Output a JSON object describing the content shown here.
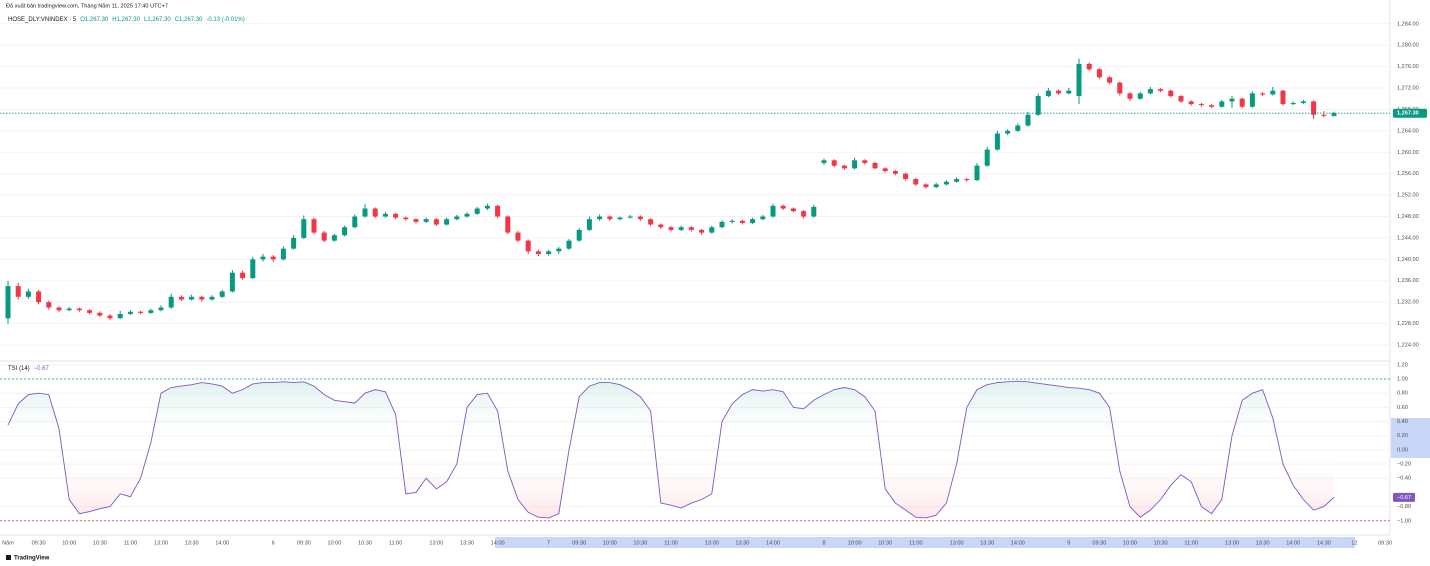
{
  "chart_data": {
    "type": "candlestick",
    "publisher": "Đã xuất bản tradingview.com, Tháng Năm 11, 2025 17:40 UTC+7",
    "symbol": "HOSE_DLY:VNINDEX · 5",
    "legend_values": [
      "O1,267.30",
      "H1,267.30",
      "L1,267.30",
      "C1,267.30",
      "-0.13 (-0.01%)"
    ],
    "watermark": "TradingView",
    "up_color": "#089981",
    "down_color": "#f23645",
    "grid": true,
    "categories": [
      "Năm",
      null,
      null,
      "09:30",
      null,
      null,
      "10:00",
      null,
      null,
      "10:30",
      null,
      null,
      "11:00",
      null,
      null,
      "13:00",
      null,
      null,
      "13:30",
      null,
      null,
      "14:00",
      null,
      null,
      null,
      null,
      "6",
      null,
      null,
      "09:30",
      null,
      null,
      "10:00",
      null,
      null,
      "10:30",
      null,
      null,
      "11:00",
      null,
      null,
      null,
      "13:00",
      null,
      null,
      "13:30",
      null,
      null,
      "14:00",
      null,
      null,
      null,
      null,
      "7",
      null,
      null,
      "09:30",
      null,
      null,
      "10:00",
      null,
      null,
      "10:30",
      null,
      null,
      "11:00",
      null,
      null,
      null,
      "13:00",
      null,
      null,
      "13:30",
      null,
      null,
      "14:00",
      null,
      null,
      null,
      null,
      "8",
      null,
      null,
      "10:00",
      null,
      null,
      "10:30",
      null,
      null,
      "11:00",
      null,
      null,
      null,
      "13:00",
      null,
      null,
      "13:30",
      null,
      null,
      "14:00",
      null,
      null,
      null,
      null,
      "9",
      null,
      null,
      "09:30",
      null,
      null,
      "10:00",
      null,
      null,
      "10:30",
      null,
      null,
      "11:00",
      null,
      null,
      null,
      "13:00",
      null,
      null,
      "13:30",
      null,
      null,
      "14:00",
      null,
      null,
      "14:30",
      null,
      null,
      "12",
      null,
      null,
      "09:30"
    ],
    "ohlc": [
      [
        1229,
        1236,
        1228,
        1235
      ],
      [
        1235,
        1235.6,
        1232.5,
        1233
      ],
      [
        1233,
        1234.5,
        1232.6,
        1234
      ],
      [
        1234,
        1234.3,
        1231.6,
        1232
      ],
      [
        1232,
        1232.3,
        1230.6,
        1231
      ],
      [
        1231,
        1231.2,
        1230.2,
        1230.5
      ],
      [
        1230.5,
        1231.1,
        1230.3,
        1230.8
      ],
      [
        1230.8,
        1231,
        1230.2,
        1230.5
      ],
      [
        1230.5,
        1230.7,
        1229.7,
        1230
      ],
      [
        1230,
        1230.3,
        1229.2,
        1229.5
      ],
      [
        1229.5,
        1229.8,
        1228.7,
        1229
      ],
      [
        1229,
        1230.4,
        1228.9,
        1229.8
      ],
      [
        1229.8,
        1230.5,
        1229.6,
        1230.2
      ],
      [
        1230.2,
        1230.4,
        1229.7,
        1230
      ],
      [
        1230,
        1230.8,
        1229.8,
        1230.5
      ],
      [
        1230.5,
        1231.4,
        1230.3,
        1231
      ],
      [
        1231,
        1233.6,
        1230.8,
        1233
      ],
      [
        1233,
        1233.3,
        1232.2,
        1232.5
      ],
      [
        1232.5,
        1233.4,
        1232.3,
        1233
      ],
      [
        1233,
        1233.2,
        1232.1,
        1232.5
      ],
      [
        1232.5,
        1233.3,
        1232.3,
        1233
      ],
      [
        1233,
        1234.3,
        1232.8,
        1234
      ],
      [
        1234,
        1238,
        1233.8,
        1237.5
      ],
      [
        1237.5,
        1237.9,
        1236.2,
        1236.5
      ],
      [
        1236.5,
        1240.5,
        1236.3,
        1240
      ],
      [
        1240,
        1241,
        1239.6,
        1240.5
      ],
      [
        1240.5,
        1240.8,
        1239.5,
        1240
      ],
      [
        1240,
        1242.4,
        1239.8,
        1242
      ],
      [
        1242,
        1244.5,
        1241.8,
        1244
      ],
      [
        1244,
        1248.2,
        1243.8,
        1247.5
      ],
      [
        1247.5,
        1247.8,
        1244.7,
        1245
      ],
      [
        1245,
        1245.3,
        1243.2,
        1243.5
      ],
      [
        1243.5,
        1244.8,
        1243.3,
        1244.5
      ],
      [
        1244.5,
        1246.3,
        1244.3,
        1246
      ],
      [
        1246,
        1248.4,
        1245.8,
        1248
      ],
      [
        1248,
        1250.3,
        1247.8,
        1249.5
      ],
      [
        1249.5,
        1249.7,
        1247.7,
        1248
      ],
      [
        1248,
        1248.9,
        1247.8,
        1248.5
      ],
      [
        1248.5,
        1248.7,
        1247.5,
        1247.8
      ],
      [
        1247.8,
        1248,
        1247.2,
        1247.5
      ],
      [
        1247.5,
        1247.7,
        1246.7,
        1247
      ],
      [
        1247,
        1247.8,
        1246.8,
        1247.5
      ],
      [
        1247.5,
        1247.7,
        1246.2,
        1246.5
      ],
      [
        1246.5,
        1247.8,
        1246.3,
        1247.5
      ],
      [
        1247.5,
        1248.3,
        1247.3,
        1248
      ],
      [
        1248,
        1248.8,
        1247.8,
        1248.5
      ],
      [
        1248.5,
        1249.8,
        1248.3,
        1249.5
      ],
      [
        1249.5,
        1250.4,
        1249.2,
        1250
      ],
      [
        1250,
        1250.2,
        1247.7,
        1248
      ],
      [
        1248,
        1248.2,
        1244.7,
        1245
      ],
      [
        1245,
        1245.3,
        1243.2,
        1243.5
      ],
      [
        1243.5,
        1243.7,
        1241,
        1241.5
      ],
      [
        1241.5,
        1241.8,
        1240.6,
        1241
      ],
      [
        1241,
        1241.8,
        1240.7,
        1241.5
      ],
      [
        1241.5,
        1242.3,
        1241,
        1242
      ],
      [
        1242,
        1243.8,
        1241.8,
        1243.5
      ],
      [
        1243.5,
        1245.8,
        1243.3,
        1245.5
      ],
      [
        1245.5,
        1248,
        1245.3,
        1247.5
      ],
      [
        1247.5,
        1248.4,
        1247.2,
        1248
      ],
      [
        1248,
        1248.2,
        1247.2,
        1247.5
      ],
      [
        1247.5,
        1248,
        1247.3,
        1247.8
      ],
      [
        1247.8,
        1248.3,
        1247.6,
        1248
      ],
      [
        1248,
        1248.2,
        1247.2,
        1247.5
      ],
      [
        1247.5,
        1247.7,
        1246.2,
        1246.5
      ],
      [
        1246.5,
        1246.7,
        1245.7,
        1246
      ],
      [
        1246,
        1246.2,
        1245.2,
        1245.5
      ],
      [
        1245.5,
        1246.3,
        1245.3,
        1246
      ],
      [
        1246,
        1246.2,
        1245.2,
        1245.5
      ],
      [
        1245.5,
        1245.7,
        1244.6,
        1245
      ],
      [
        1245,
        1246.3,
        1244.8,
        1246
      ],
      [
        1246,
        1247.3,
        1245.8,
        1247
      ],
      [
        1247,
        1247.5,
        1246.7,
        1247.2
      ],
      [
        1247.2,
        1247.4,
        1246.5,
        1246.8
      ],
      [
        1246.8,
        1247.8,
        1246.6,
        1247.5
      ],
      [
        1247.5,
        1248.3,
        1247.3,
        1248
      ],
      [
        1248,
        1250.4,
        1247.8,
        1250
      ],
      [
        1250,
        1250.2,
        1249.2,
        1249.5
      ],
      [
        1249.5,
        1249.7,
        1248.8,
        1249
      ],
      [
        1249,
        1249.2,
        1247.6,
        1248
      ],
      [
        1248,
        1250.2,
        1247.8,
        1249.8
      ],
      [
        1258,
        1258.8,
        1257.6,
        1258.5
      ],
      [
        1258.5,
        1258.7,
        1257.2,
        1257.5
      ],
      [
        1257.5,
        1257.7,
        1256.7,
        1257
      ],
      [
        1257,
        1259,
        1256.8,
        1258.5
      ],
      [
        1258.5,
        1258.7,
        1257.7,
        1258
      ],
      [
        1258,
        1258.2,
        1256.8,
        1257
      ],
      [
        1257,
        1257.2,
        1256.2,
        1256.5
      ],
      [
        1256.5,
        1256.7,
        1255.7,
        1256
      ],
      [
        1256,
        1256.2,
        1254.7,
        1255
      ],
      [
        1255,
        1255.2,
        1253.7,
        1254
      ],
      [
        1254,
        1254.2,
        1253.2,
        1253.5
      ],
      [
        1253.5,
        1254.3,
        1253.3,
        1254
      ],
      [
        1254,
        1254.8,
        1253.8,
        1254.5
      ],
      [
        1254.5,
        1255.3,
        1254.3,
        1255
      ],
      [
        1255,
        1255.2,
        1254.5,
        1254.8
      ],
      [
        1254.8,
        1258,
        1254.6,
        1257.5
      ],
      [
        1257.5,
        1261,
        1257.3,
        1260.5
      ],
      [
        1260.5,
        1264,
        1260.3,
        1263.5
      ],
      [
        1263.5,
        1264.3,
        1263.2,
        1264
      ],
      [
        1264,
        1265.4,
        1263.8,
        1265
      ],
      [
        1265,
        1267.5,
        1264.8,
        1267
      ],
      [
        1267,
        1271,
        1266.8,
        1270.5
      ],
      [
        1270.5,
        1272,
        1270.3,
        1271.5
      ],
      [
        1271.5,
        1271.7,
        1270.7,
        1271
      ],
      [
        1271,
        1272,
        1270.8,
        1271.5
      ],
      [
        1270.5,
        1277.5,
        1269,
        1276.5
      ],
      [
        1276.5,
        1276.8,
        1275.2,
        1275.5
      ],
      [
        1275.5,
        1275.7,
        1273.7,
        1274
      ],
      [
        1274,
        1274.2,
        1272.7,
        1273
      ],
      [
        1273,
        1273.2,
        1270.6,
        1271
      ],
      [
        1271,
        1271.2,
        1269.6,
        1270
      ],
      [
        1270,
        1271.3,
        1269.8,
        1271
      ],
      [
        1271,
        1272.2,
        1270.8,
        1271.8
      ],
      [
        1271.8,
        1272,
        1271.2,
        1271.5
      ],
      [
        1271.5,
        1271.7,
        1270.2,
        1270.5
      ],
      [
        1270.5,
        1270.7,
        1269.2,
        1269.5
      ],
      [
        1269.5,
        1269.7,
        1268.7,
        1269
      ],
      [
        1269,
        1269.2,
        1268.5,
        1268.8
      ],
      [
        1268.8,
        1269,
        1268.2,
        1268.5
      ],
      [
        1268.5,
        1269.8,
        1268.3,
        1269.5
      ],
      [
        1269.5,
        1270.5,
        1268.3,
        1270
      ],
      [
        1270,
        1270.2,
        1268.2,
        1268.5
      ],
      [
        1268.5,
        1271.4,
        1268.3,
        1271
      ],
      [
        1271,
        1271.2,
        1270.5,
        1270.8
      ],
      [
        1270.8,
        1272.2,
        1270.6,
        1271.5
      ],
      [
        1271.5,
        1271.7,
        1268.7,
        1269
      ],
      [
        1269,
        1269.5,
        1268.8,
        1269.2
      ],
      [
        1269.2,
        1269.8,
        1269,
        1269.5
      ],
      [
        1269.5,
        1269.7,
        1266.2,
        1267
      ],
      [
        1267,
        1267.7,
        1266.5,
        1266.8
      ],
      [
        1266.8,
        1267.6,
        1266.6,
        1267.3
      ],
      null,
      null,
      null,
      null,
      null
    ],
    "ylim": [
      1221.2,
      1286.2
    ],
    "yticks": [
      {
        "value": 1284,
        "label": "1,284.00"
      },
      {
        "value": 1280,
        "label": "1,280.00"
      },
      {
        "value": 1276,
        "label": "1,276.00"
      },
      {
        "value": 1272,
        "label": "1,272.00"
      },
      {
        "value": 1268,
        "label": "1,268.00"
      },
      {
        "value": 1264,
        "label": "1,264.00"
      },
      {
        "value": 1260,
        "label": "1,260.00"
      },
      {
        "value": 1256,
        "label": "1,256.00"
      },
      {
        "value": 1252,
        "label": "1,252.00"
      },
      {
        "value": 1248,
        "label": "1,248.00"
      },
      {
        "value": 1244,
        "label": "1,244.00"
      },
      {
        "value": 1240,
        "label": "1,240.00"
      },
      {
        "value": 1236,
        "label": "1,236.00"
      },
      {
        "value": 1232,
        "label": "1,232.00"
      },
      {
        "value": 1228,
        "label": "1,228.00"
      },
      {
        "value": 1224,
        "label": "1,224.00"
      }
    ],
    "last_price": {
      "value": 1267.3,
      "label": "1,267.30"
    },
    "indicator": {
      "type": "line",
      "name": "TSI (14)",
      "color": "#7e57c2",
      "last": {
        "value": -0.67,
        "label": "−0.67"
      },
      "values": [
        0.35,
        0.65,
        0.78,
        0.8,
        0.78,
        0.3,
        -0.7,
        -0.9,
        -0.87,
        -0.83,
        -0.8,
        -0.62,
        -0.66,
        -0.4,
        0.1,
        0.8,
        0.88,
        0.9,
        0.92,
        0.95,
        0.93,
        0.9,
        0.8,
        0.85,
        0.93,
        0.95,
        0.95,
        0.96,
        0.95,
        0.96,
        0.9,
        0.78,
        0.7,
        0.68,
        0.66,
        0.8,
        0.85,
        0.82,
        0.5,
        -0.62,
        -0.6,
        -0.4,
        -0.55,
        -0.45,
        -0.2,
        0.6,
        0.78,
        0.8,
        0.55,
        -0.3,
        -0.7,
        -0.88,
        -0.95,
        -0.96,
        -0.9,
        0.0,
        0.75,
        0.9,
        0.95,
        0.95,
        0.92,
        0.85,
        0.75,
        0.55,
        -0.75,
        -0.78,
        -0.82,
        -0.75,
        -0.7,
        -0.62,
        0.4,
        0.65,
        0.78,
        0.85,
        0.83,
        0.85,
        0.82,
        0.6,
        0.58,
        0.7,
        0.78,
        0.85,
        0.88,
        0.85,
        0.75,
        0.55,
        -0.55,
        -0.75,
        -0.85,
        -0.95,
        -0.96,
        -0.92,
        -0.75,
        -0.2,
        0.6,
        0.85,
        0.92,
        0.95,
        0.96,
        0.97,
        0.96,
        0.94,
        0.92,
        0.9,
        0.88,
        0.87,
        0.85,
        0.8,
        0.6,
        -0.3,
        -0.8,
        -0.95,
        -0.85,
        -0.7,
        -0.5,
        -0.35,
        -0.45,
        -0.8,
        -0.9,
        -0.7,
        0.2,
        0.7,
        0.8,
        0.85,
        0.45,
        -0.2,
        -0.5,
        -0.7,
        -0.85,
        -0.8,
        -0.67,
        null,
        null,
        null,
        null,
        null
      ],
      "ylim": [
        -1.13,
        1.24
      ],
      "yticks": [
        {
          "value": 1.2,
          "label": "1.20"
        },
        {
          "value": 1,
          "label": "1.00"
        },
        {
          "value": 0.8,
          "label": "0.80"
        },
        {
          "value": 0.6,
          "label": "0.60"
        },
        {
          "value": 0.4,
          "label": "0.40"
        },
        {
          "value": 0.2,
          "label": "0.20"
        },
        {
          "value": 0,
          "label": "0.00"
        },
        {
          "value": -0.2,
          "label": "−0.20"
        },
        {
          "value": -0.4,
          "label": "−0.40"
        },
        {
          "value": -0.8,
          "label": "−0.80"
        },
        {
          "value": -1,
          "label": "−1.00"
        }
      ],
      "levels": [
        {
          "value": 1,
          "color": "#089981"
        },
        {
          "value": -1,
          "color": "#f23645"
        }
      ]
    }
  }
}
